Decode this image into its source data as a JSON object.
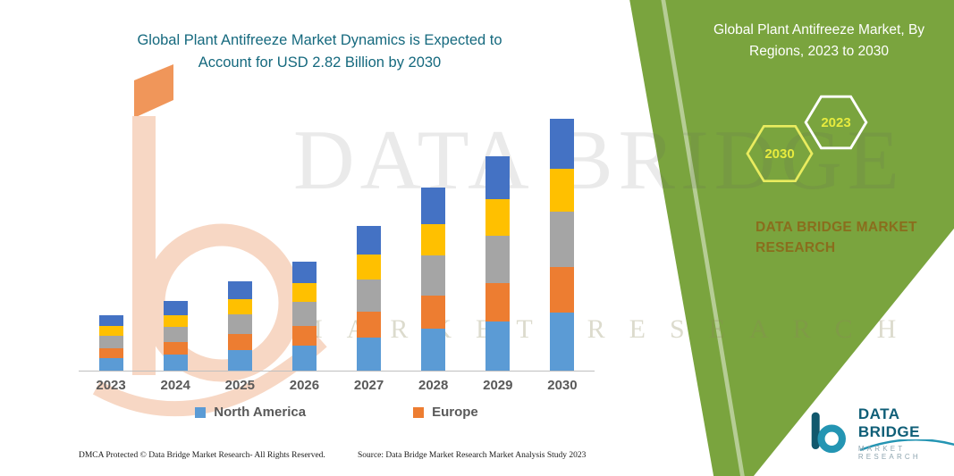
{
  "header": {
    "title_line1": "Global Plant Antifreeze Market Dynamics is Expected to",
    "title_line2": "Account for USD 2.82 Billion by 2030"
  },
  "panel": {
    "heading": "Global Plant Antifreeze Market, By Regions, 2023 to 2030",
    "hexagons": [
      {
        "year": "2030"
      },
      {
        "year": "2023"
      }
    ],
    "brand_text": "DATA BRIDGE MARKET RESEARCH",
    "bg_color": "#7AA43E"
  },
  "watermark": {
    "line1": "DATA BRIDGE",
    "line2": "MARKET RESEARCH"
  },
  "chart_data": {
    "type": "bar",
    "stacked": true,
    "title": "Global Plant Antifreeze Market Dynamics is Expected to Account for USD 2.82 Billion by 2030",
    "xlabel": "",
    "ylabel": "",
    "unit": "USD Billion (estimated from bar heights; 2030 total stated as 2.82)",
    "categories": [
      "2023",
      "2024",
      "2025",
      "2026",
      "2027",
      "2028",
      "2029",
      "2030"
    ],
    "series": [
      {
        "name": "North America",
        "color": "#5B9BD5",
        "values": [
          0.14,
          0.18,
          0.23,
          0.28,
          0.37,
          0.47,
          0.55,
          0.65
        ]
      },
      {
        "name": "Europe",
        "color": "#ED7D31",
        "values": [
          0.11,
          0.14,
          0.18,
          0.22,
          0.29,
          0.37,
          0.43,
          0.51
        ]
      },
      {
        "name": "(unlabeled gray segment)",
        "color": "#A5A5A5",
        "values": [
          0.14,
          0.17,
          0.22,
          0.27,
          0.36,
          0.45,
          0.53,
          0.62
        ]
      },
      {
        "name": "(unlabeled gold segment)",
        "color": "#FFC000",
        "values": [
          0.11,
          0.13,
          0.17,
          0.21,
          0.28,
          0.35,
          0.41,
          0.48
        ]
      },
      {
        "name": "(unlabeled dark blue segment)",
        "color": "#4472C4",
        "values": [
          0.12,
          0.16,
          0.2,
          0.24,
          0.32,
          0.41,
          0.48,
          0.56
        ]
      }
    ],
    "totals": [
      0.62,
      0.78,
      1.0,
      1.22,
      1.62,
      2.05,
      2.4,
      2.82
    ],
    "ylim": [
      0,
      3
    ],
    "grid": false,
    "legend_position": "bottom",
    "legend_visible_entries": [
      "North America",
      "Europe"
    ]
  },
  "legend": [
    {
      "label": "North America",
      "color": "#5B9BD5"
    },
    {
      "label": "Europe",
      "color": "#ED7D31"
    }
  ],
  "footer": {
    "dmca": "DMCA Protected © Data Bridge Market Research-  All Rights Reserved.",
    "source": "Source: Data Bridge Market Research  Market Analysis Study 2023",
    "logo_title": "DATA BRIDGE",
    "logo_subtitle": "MARKET RESEARCH"
  }
}
